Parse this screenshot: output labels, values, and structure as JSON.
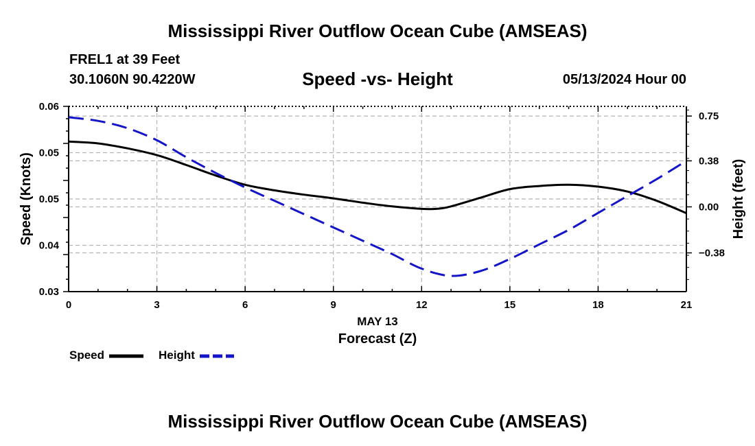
{
  "header": {
    "title": "Mississippi River Outflow Ocean Cube (AMSEAS)",
    "station": "FREL1 at 39 Feet",
    "coords": "30.1060N  90.4220W",
    "subtitle": "Speed -vs- Height",
    "datetime": "05/13/2024 Hour 00"
  },
  "footer": {
    "title": "Mississippi River Outflow Ocean Cube (AMSEAS)"
  },
  "legend": {
    "speed_label": "Speed",
    "height_label": "Height"
  },
  "colors": {
    "speed": "#000000",
    "height": "#1414c8",
    "grid": "#b4b4b4"
  },
  "chart_data": {
    "type": "line",
    "title": "Speed -vs- Height",
    "xlabel": "Forecast (Z)",
    "xsublabel": "MAY 13",
    "ylabel": "Speed (Knots)",
    "y2label": "Height (feet)",
    "xlim": [
      0,
      21
    ],
    "ylim": [
      0.03,
      0.06
    ],
    "y2lim": [
      -0.7,
      0.83
    ],
    "x_ticks": [
      0,
      3,
      6,
      9,
      12,
      15,
      18,
      21
    ],
    "x_tick_labels": [
      "0",
      "3",
      "6",
      "9",
      "12",
      "15",
      "18",
      "21"
    ],
    "y_ticks": [
      0.03,
      0.0375,
      0.045,
      0.0525,
      0.06
    ],
    "y_tick_labels": [
      "0.03",
      "0.04",
      "0.05",
      "0.05",
      "0.06"
    ],
    "y2_ticks": [
      -0.38,
      0.0,
      0.38,
      0.75
    ],
    "y2_tick_labels": [
      "−0.38",
      "0.00",
      "0.38",
      "0.75"
    ],
    "grid": true,
    "series": [
      {
        "name": "Speed",
        "axis": "left",
        "style": "solid",
        "x": [
          0,
          1,
          2,
          3,
          4,
          5,
          6,
          7,
          8,
          9,
          10,
          11,
          12,
          12.5,
          13,
          14,
          15,
          16,
          17,
          18,
          19,
          20,
          21
        ],
        "values": [
          0.0543,
          0.054,
          0.0532,
          0.0521,
          0.0505,
          0.0488,
          0.0473,
          0.0464,
          0.0457,
          0.0451,
          0.0444,
          0.0438,
          0.0434,
          0.0434,
          0.0438,
          0.0452,
          0.0466,
          0.0471,
          0.0473,
          0.047,
          0.0462,
          0.0447,
          0.0427
        ]
      },
      {
        "name": "Height",
        "axis": "right",
        "style": "dashed",
        "x": [
          0,
          1,
          2,
          3,
          4,
          5,
          6,
          7,
          8,
          9,
          10,
          11,
          12,
          13,
          14,
          15,
          16,
          17,
          18,
          19,
          20,
          21
        ],
        "values": [
          0.74,
          0.71,
          0.65,
          0.55,
          0.41,
          0.28,
          0.16,
          0.05,
          -0.06,
          -0.17,
          -0.28,
          -0.39,
          -0.51,
          -0.57,
          -0.53,
          -0.43,
          -0.31,
          -0.19,
          -0.05,
          0.09,
          0.23,
          0.38
        ]
      }
    ]
  }
}
